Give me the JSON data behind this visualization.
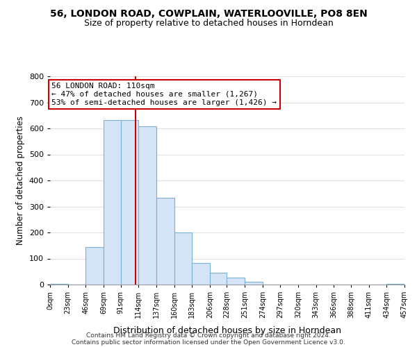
{
  "title": "56, LONDON ROAD, COWPLAIN, WATERLOOVILLE, PO8 8EN",
  "subtitle": "Size of property relative to detached houses in Horndean",
  "xlabel": "Distribution of detached houses by size in Horndean",
  "ylabel": "Number of detached properties",
  "bar_color": "#d6e4f7",
  "bar_edge_color": "#7bafd4",
  "background_color": "#ffffff",
  "bin_edges": [
    0,
    23,
    46,
    69,
    91,
    114,
    137,
    160,
    183,
    206,
    228,
    251,
    274,
    297,
    320,
    343,
    366,
    388,
    411,
    434,
    457
  ],
  "bin_labels": [
    "0sqm",
    "23sqm",
    "46sqm",
    "69sqm",
    "91sqm",
    "114sqm",
    "137sqm",
    "160sqm",
    "183sqm",
    "206sqm",
    "228sqm",
    "251sqm",
    "274sqm",
    "297sqm",
    "320sqm",
    "343sqm",
    "366sqm",
    "388sqm",
    "411sqm",
    "434sqm",
    "457sqm"
  ],
  "bar_heights": [
    2,
    0,
    143,
    633,
    633,
    608,
    333,
    200,
    83,
    46,
    27,
    12,
    0,
    0,
    0,
    0,
    0,
    0,
    0,
    3
  ],
  "ylim": [
    0,
    800
  ],
  "yticks": [
    0,
    100,
    200,
    300,
    400,
    500,
    600,
    700,
    800
  ],
  "vline_x": 110,
  "vline_color": "#cc0000",
  "annotation_title": "56 LONDON ROAD: 110sqm",
  "annotation_line1": "← 47% of detached houses are smaller (1,267)",
  "annotation_line2": "53% of semi-detached houses are larger (1,426) →",
  "annotation_box_color": "#ffffff",
  "annotation_box_edge": "#cc0000",
  "grid_color": "#e0e0e0",
  "footer1": "Contains HM Land Registry data © Crown copyright and database right 2024.",
  "footer2": "Contains public sector information licensed under the Open Government Licence v3.0."
}
